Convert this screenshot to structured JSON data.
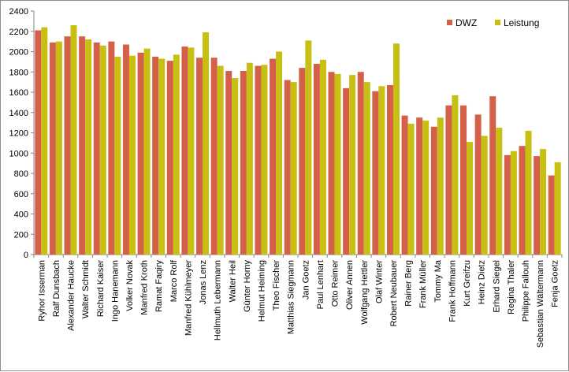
{
  "chart_data": {
    "type": "bar",
    "title": "",
    "xlabel": "",
    "ylabel": "",
    "ylim": [
      0,
      2400
    ],
    "ytick_step": 200,
    "grid": false,
    "legend_position": "top-right",
    "categories": [
      "Ryhor Isserman",
      "Ralf Dunsbach",
      "Alexander Haucke",
      "Walter Schmidt",
      "Richard Kaiser",
      "Ingo Hanemann",
      "Volker Novak",
      "Manfred Kroth",
      "Ramat Faqiry",
      "Marco Rolf",
      "Manfred Kühlmeyer",
      "Jonas Lenz",
      "Hellmuth Lebermann",
      "Walter Heil",
      "Günter Horny",
      "Helmut Heiming",
      "Theo Fischer",
      "Matthias Siegmann",
      "Jan Goetz",
      "Paul Lenhart",
      "Otto Reimer",
      "Oliver Annen",
      "Wolfgang Hettler",
      "Olaf Winter",
      "Robert Neubauer",
      "Rainer Berg",
      "Frank Müller",
      "Tommy Ma",
      "Frank Hoffmann",
      "Kurt Greifzu",
      "Heinz Dietz",
      "Erhard Siegel",
      "Regina Thaler",
      "Philippe Fallouh",
      "Sebastian Wältermann",
      "Fenja Goetz"
    ],
    "series": [
      {
        "name": "DWZ",
        "color": "#d4604a",
        "values": [
          2210,
          2090,
          2150,
          2150,
          2090,
          2100,
          2070,
          1990,
          1950,
          1910,
          2050,
          1940,
          1940,
          1810,
          1810,
          1860,
          1930,
          1720,
          1840,
          1880,
          1800,
          1640,
          1800,
          1610,
          1670,
          1370,
          1350,
          1260,
          1470,
          1470,
          1380,
          1560,
          980,
          1070,
          970,
          780
        ]
      },
      {
        "name": "Leistung",
        "color": "#c7c012",
        "values": [
          2240,
          2100,
          2260,
          2120,
          2060,
          1950,
          1960,
          2030,
          1930,
          1970,
          2040,
          2190,
          1860,
          1740,
          1890,
          1870,
          2000,
          1700,
          2110,
          1920,
          1780,
          1770,
          1700,
          1660,
          2080,
          1290,
          1320,
          1350,
          1570,
          1110,
          1170,
          1250,
          1020,
          1220,
          1040,
          910
        ]
      }
    ]
  }
}
